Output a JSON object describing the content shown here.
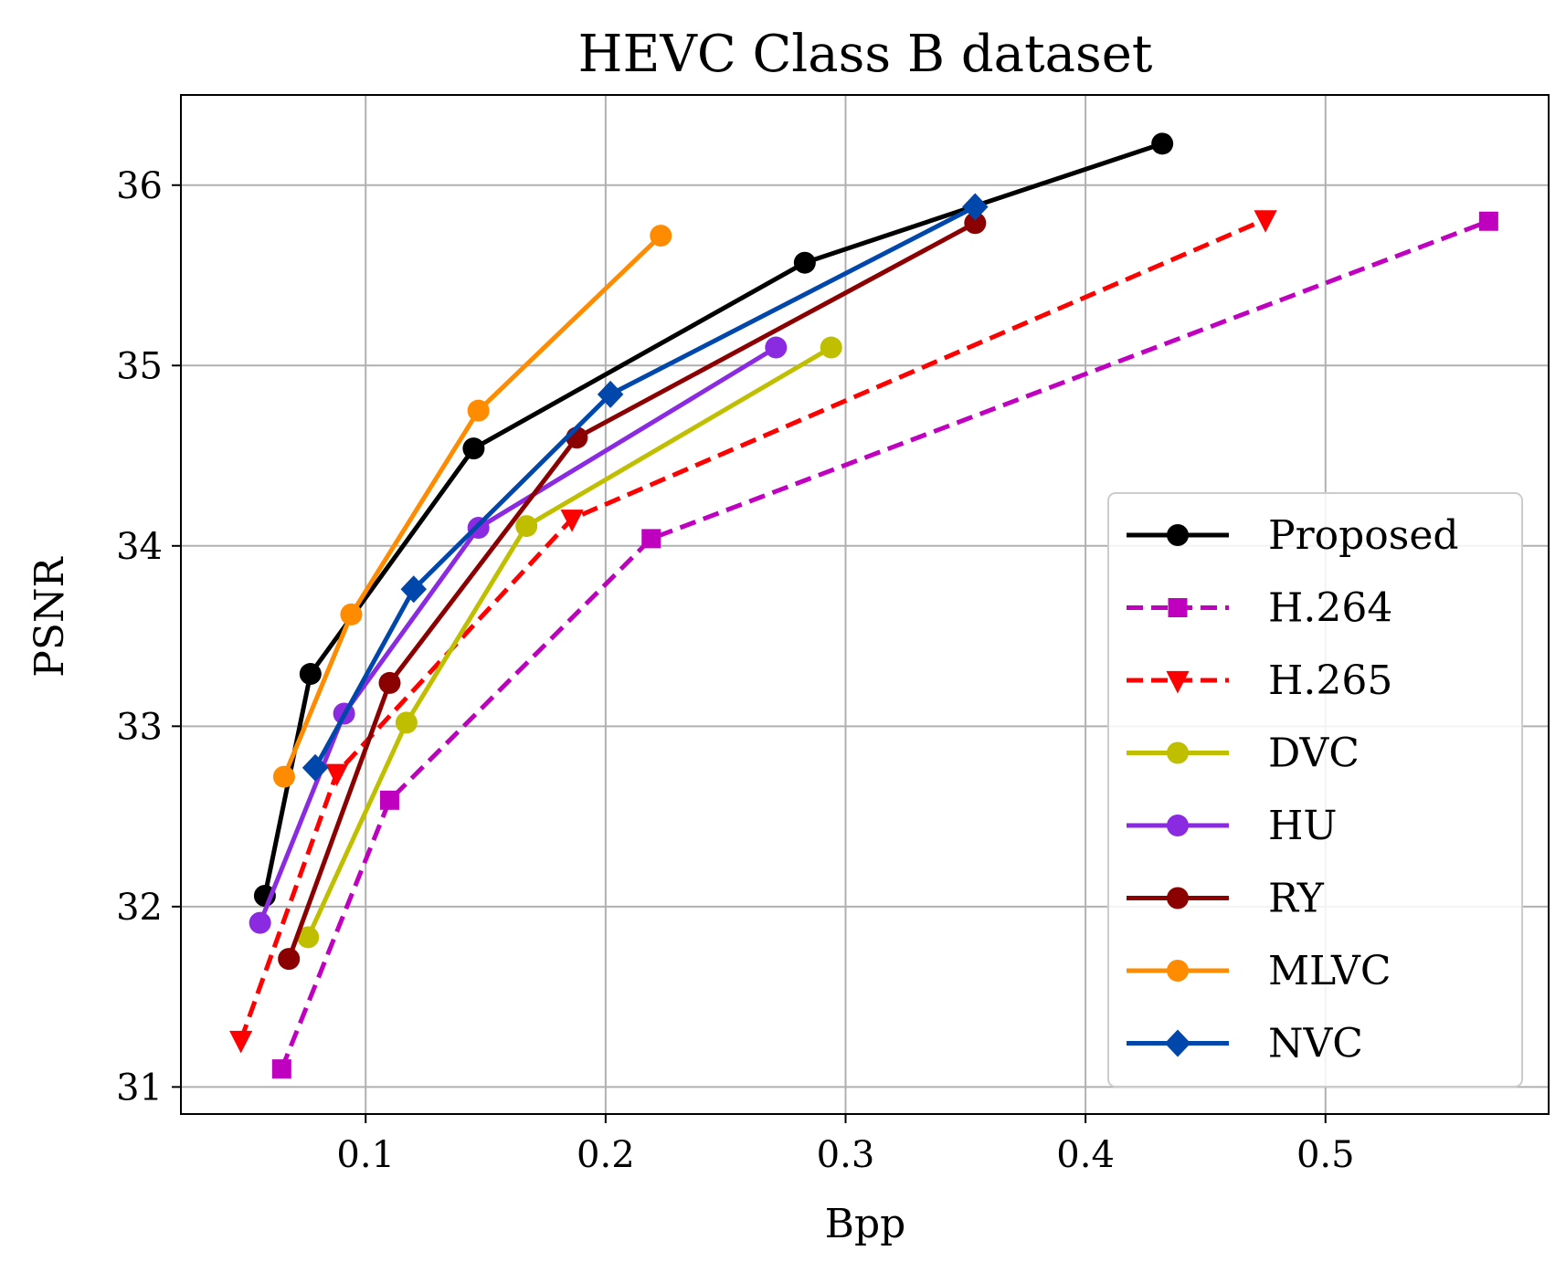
{
  "chart_data": {
    "type": "line",
    "title": "HEVC Class B dataset",
    "xlabel": "Bpp",
    "ylabel": "PSNR",
    "xlim": [
      0.023,
      0.593
    ],
    "ylim": [
      30.85,
      36.5
    ],
    "xticks": [
      0.1,
      0.2,
      0.3,
      0.4,
      0.5
    ],
    "xtick_labels": [
      "0.1",
      "0.2",
      "0.3",
      "0.4",
      "0.5"
    ],
    "yticks": [
      31,
      32,
      33,
      34,
      35,
      36
    ],
    "ytick_labels": [
      "31",
      "32",
      "33",
      "34",
      "35",
      "36"
    ],
    "grid": true,
    "legend_position": "lower-right",
    "series": [
      {
        "name": "Proposed",
        "color": "#000000",
        "dash": "solid",
        "marker": "circle",
        "x": [
          0.058,
          0.077,
          0.145,
          0.283,
          0.432
        ],
        "y": [
          32.06,
          33.29,
          34.54,
          35.57,
          36.23
        ]
      },
      {
        "name": "H.264",
        "color": "#bf00bf",
        "dash": "dashed",
        "marker": "square",
        "x": [
          0.065,
          0.11,
          0.219,
          0.568
        ],
        "y": [
          31.1,
          32.59,
          34.04,
          35.8
        ]
      },
      {
        "name": "H.265",
        "color": "#ff0000",
        "dash": "dashed",
        "marker": "triangle-down",
        "x": [
          0.048,
          0.088,
          0.186,
          0.475
        ],
        "y": [
          31.26,
          32.74,
          34.15,
          35.81
        ]
      },
      {
        "name": "DVC",
        "color": "#bfbf00",
        "dash": "solid",
        "marker": "circle",
        "x": [
          0.076,
          0.117,
          0.167,
          0.294
        ],
        "y": [
          31.83,
          33.02,
          34.11,
          35.1
        ]
      },
      {
        "name": "HU",
        "color": "#8a2be2",
        "dash": "solid",
        "marker": "circle",
        "x": [
          0.056,
          0.091,
          0.147,
          0.271
        ],
        "y": [
          31.91,
          33.07,
          34.1,
          35.1
        ]
      },
      {
        "name": "RY",
        "color": "#8b0000",
        "dash": "solid",
        "marker": "circle",
        "x": [
          0.068,
          0.11,
          0.188,
          0.354
        ],
        "y": [
          31.71,
          33.24,
          34.6,
          35.79
        ]
      },
      {
        "name": "MLVC",
        "color": "#ff8c00",
        "dash": "solid",
        "marker": "circle",
        "x": [
          0.066,
          0.094,
          0.147,
          0.223
        ],
        "y": [
          32.72,
          33.62,
          34.75,
          35.72
        ]
      },
      {
        "name": "NVC",
        "color": "#0047ab",
        "dash": "solid",
        "marker": "diamond",
        "x": [
          0.079,
          0.12,
          0.202,
          0.354
        ],
        "y": [
          32.77,
          33.76,
          34.84,
          35.88
        ]
      }
    ]
  }
}
